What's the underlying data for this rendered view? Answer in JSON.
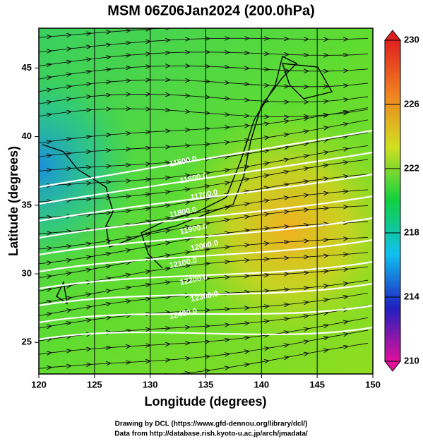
{
  "chart_data": {
    "type": "map",
    "title": "MSM 06Z06Jan2024 (200.0hPa)",
    "x_label": "Longitude (degrees)",
    "y_label": "Latitude  (degrees)",
    "xlim": [
      120,
      150
    ],
    "xticks": [
      120,
      125,
      130,
      135,
      140,
      145,
      150
    ],
    "ylim": [
      22.7,
      47.9
    ],
    "yticks": [
      25,
      30,
      35,
      40,
      45
    ],
    "grid": true,
    "colorbar": {
      "lim": [
        210,
        230
      ],
      "ticks": [
        210,
        214,
        218,
        222,
        226,
        230
      ],
      "colors": [
        "#e0109a",
        "#2020c0",
        "#10c0f0",
        "#10d040",
        "#d0e020",
        "#f08020",
        "#e02020"
      ]
    },
    "contour_labels": [
      "11500.0",
      "11600.0",
      "11700.0",
      "11800.0",
      "11900.0",
      "12000.0",
      "12100.0",
      "12200.0",
      "12300.0",
      "12400.0"
    ],
    "footer": [
      "Drawing by DCL (https://www.gfd-dennou.org/library/dcl/)",
      "Data from http://database.rish.kyoto-u.ac.jp/arch/jmadata/"
    ]
  }
}
